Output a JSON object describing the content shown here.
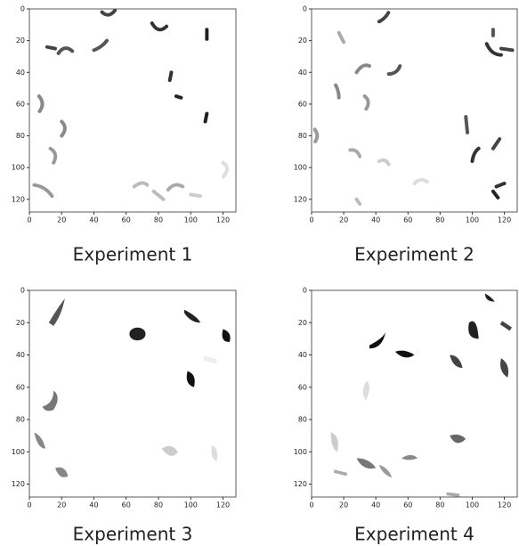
{
  "chart_data": [
    {
      "type": "image",
      "title": "Experiment 1",
      "xlim": [
        0,
        128
      ],
      "ylim": [
        128,
        0
      ],
      "xticks": [
        0,
        20,
        40,
        60,
        80,
        100,
        120
      ],
      "yticks": [
        0,
        20,
        40,
        60,
        80,
        100,
        120
      ]
    },
    {
      "type": "image",
      "title": "Experiment 2",
      "xlim": [
        0,
        128
      ],
      "ylim": [
        128,
        0
      ],
      "xticks": [
        0,
        20,
        40,
        60,
        80,
        100,
        120
      ],
      "yticks": [
        0,
        20,
        40,
        60,
        80,
        100,
        120
      ]
    },
    {
      "type": "image",
      "title": "Experiment 3",
      "xlim": [
        0,
        128
      ],
      "ylim": [
        128,
        0
      ],
      "xticks": [
        0,
        20,
        40,
        60,
        80,
        100,
        120
      ],
      "yticks": [
        0,
        20,
        40,
        60,
        80,
        100,
        120
      ]
    },
    {
      "type": "image",
      "title": "Experiment 4",
      "xlim": [
        0,
        128
      ],
      "ylim": [
        128,
        0
      ],
      "xticks": [
        0,
        20,
        40,
        60,
        80,
        100,
        120
      ],
      "yticks": [
        0,
        20,
        40,
        60,
        80,
        100,
        120
      ]
    }
  ]
}
